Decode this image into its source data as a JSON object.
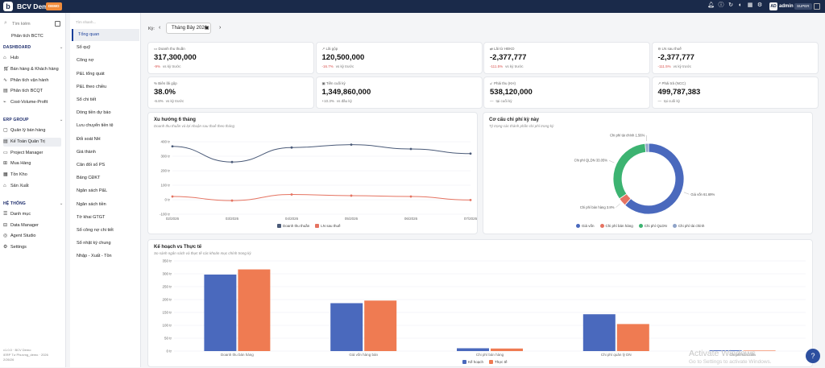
{
  "topbar": {
    "brand": "BCV Demo",
    "badge": "DEMO",
    "avatar": "AD",
    "user": "admin",
    "role": "SUPER",
    "icons": [
      "bell-icon",
      "info-icon",
      "refresh-icon",
      "theme-icon",
      "grid-icon",
      "settings-icon"
    ]
  },
  "sidebar": {
    "search_placeholder": "Tìm kiếm",
    "pinned": "Phân tích BCTC",
    "sections": [
      {
        "title": "DASHBOARD",
        "items": [
          "Hub",
          "Bán hàng & Khách hàng",
          "Phân tích vận hành",
          "Phân tích BCQT",
          "Cost-Volume-Profit"
        ]
      },
      {
        "title": "ERP GROUP",
        "items": [
          "Quản lý bán hàng",
          "Kế Toán Quản Trị",
          "Project Manager",
          "Mua Hàng",
          "Tồn Kho",
          "Sản Xuất"
        ]
      },
      {
        "title": "HỆ THỐNG",
        "items": [
          "Danh mục",
          "Data Manager",
          "Agent Studio",
          "Settings"
        ]
      }
    ],
    "footer": [
      "v1.0.0 · BCV Demo",
      "/ERP Tư Phương_demo · 2026",
      "2/26/26"
    ]
  },
  "submenu": {
    "search_placeholder": "Tìm nhanh...",
    "items": [
      "Tổng quan",
      "Sổ quỹ",
      "Công nợ",
      "P&L tổng quát",
      "P&L theo chiều",
      "Sổ chi tiết",
      "Dòng tiền dự báo",
      "Lưu chuyển tiền tệ",
      "Đối soát NH",
      "Giá thành",
      "Cân đối số PS",
      "Bảng CĐKT",
      "Ngân sách P&L",
      "Ngân sách tiền",
      "Tờ khai GTGT",
      "Sổ công nợ chi tiết",
      "Sổ nhật ký chung",
      "Nhập - Xuất - Tồn"
    ],
    "active": 0
  },
  "period": {
    "label": "Kỳ:",
    "value": "Tháng Bảy 2026"
  },
  "kpis": [
    {
      "label": "Doanh thu thuần",
      "value": "317,300,000",
      "change": "-9%",
      "note": "vs kỳ trước",
      "neg": true
    },
    {
      "label": "Lãi gộp",
      "value": "120,500,000",
      "change": "-16.7%",
      "note": "vs kỳ trước",
      "neg": true
    },
    {
      "label": "Lãi từ HĐKD",
      "value": "-2,377,777",
      "change": "-111.5%",
      "note": "vs kỳ trước",
      "neg": true
    },
    {
      "label": "LN sau thuế",
      "value": "-2,377,777",
      "change": "-111.5%",
      "note": "vs kỳ trước",
      "neg": true
    },
    {
      "label": "Biên lãi gộp",
      "value": "38.0%",
      "change": "-6.8%",
      "note": "vs kỳ trước",
      "neg": false
    },
    {
      "label": "Tiền cuối kỳ",
      "value": "1,349,860,000",
      "change": "+10.3%",
      "note": "vs đầu kỳ",
      "neg": false
    },
    {
      "label": "Phải thu (KH)",
      "value": "538,120,000",
      "change": "—",
      "note": "tại cuối kỳ",
      "neg": false
    },
    {
      "label": "Phải trả (NCC)",
      "value": "499,787,383",
      "change": "—",
      "note": "tại cuối kỳ",
      "neg": false
    }
  ],
  "trend": {
    "title": "Xu hướng 6 tháng",
    "subtitle": "Doanh thu thuần và lợi nhuận sau thuế theo tháng"
  },
  "costs": {
    "title": "Cơ cấu chi phí kỳ này",
    "subtitle": "Tỷ trọng các thành phần chi phí trong kỳ"
  },
  "budget": {
    "title": "Kế hoạch vs Thực tế",
    "subtitle": "So sánh ngân sách và thực tế các khoản mục chính trong kỳ"
  },
  "chart_data": [
    {
      "type": "line",
      "title": "Xu hướng 6 tháng",
      "x": [
        "02/2026",
        "03/2026",
        "04/2026",
        "05/2026",
        "06/2026",
        "07/2026"
      ],
      "yticks": [
        "400 tr",
        "300 tr",
        "200 tr",
        "100 tr",
        "0 tr",
        "-100 tr"
      ],
      "ylim": [
        -100,
        400
      ],
      "series": [
        {
          "name": "Doanh thu thuần",
          "color": "#4a5a78",
          "values": [
            368,
            260,
            360,
            380,
            350,
            318
          ]
        },
        {
          "name": "LN sau thuế",
          "color": "#e57361",
          "values": [
            22,
            -6,
            36,
            28,
            22,
            -2
          ]
        }
      ],
      "legend": "bottom"
    },
    {
      "type": "pie",
      "title": "Cơ cấu chi phí kỳ này",
      "slices": [
        {
          "name": "Giá vốn",
          "value": 61.69,
          "color": "#4a69bd",
          "label": "Giá vốn  61.69%"
        },
        {
          "name": "Chi phí bán hàng",
          "value": 3.8,
          "color": "#e57361",
          "label": "Chi phí bán hàng  3.8%"
        },
        {
          "name": "Chi phí QLDN",
          "value": 33.05,
          "color": "#3cb371",
          "label": "Chi phí QLDN  33.05%"
        },
        {
          "name": "Chi phí tài chính",
          "value": 1.56,
          "color": "#8fa3c8",
          "label": "Chi phí tài chính  1.56%"
        }
      ],
      "legend": "bottom"
    },
    {
      "type": "bar",
      "title": "Kế hoạch vs Thực tế",
      "categories": [
        "Doanh thu bán hàng",
        "Giá vốn hàng bán",
        "Chi phí bán hàng",
        "Chi phí quản lý DN",
        "Chi phí tài chính"
      ],
      "yticks": [
        "350 tr",
        "300 tr",
        "250 tr",
        "200 tr",
        "150 tr",
        "100 tr",
        "50 tr",
        "0 tr"
      ],
      "ylim": [
        0,
        350
      ],
      "series": [
        {
          "name": "Kế hoạch",
          "color": "#4a69bd",
          "values": [
            297,
            186,
            11,
            143,
            3
          ]
        },
        {
          "name": "Thực tế",
          "color": "#ef7b52",
          "values": [
            317,
            196,
            10,
            105,
            2
          ]
        }
      ],
      "legend": "bottom"
    }
  ],
  "watermark": {
    "title": "Activate Windows",
    "subtitle": "Go to Settings to activate Windows."
  },
  "help": "?"
}
